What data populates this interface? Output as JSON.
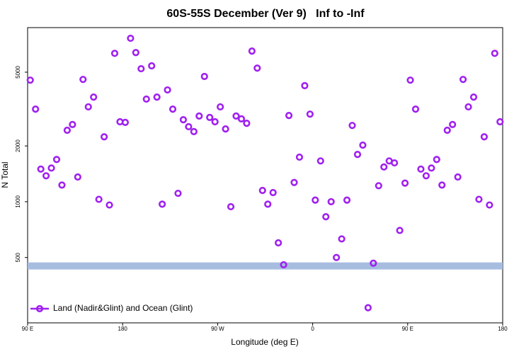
{
  "chart_data": {
    "type": "scatter",
    "title": "60S-55S December (Ver 9)   Inf to -Inf",
    "x_label": "Longitude (deg E)",
    "y_label": "N Total",
    "log_y": true,
    "legend_position": "bottom-left",
    "xlim": [
      90,
      540
    ],
    "xticks": [
      {
        "value": 90,
        "label": "90 E"
      },
      {
        "value": 180,
        "label": "180"
      },
      {
        "value": 270,
        "label": "90 W"
      },
      {
        "value": 360,
        "label": "0"
      },
      {
        "value": 450,
        "label": "90 E"
      },
      {
        "value": 540,
        "label": "180"
      }
    ],
    "ylim": [
      222,
      8700
    ],
    "yticks": [
      500,
      1000,
      2000,
      5000
    ],
    "reference_line": {
      "value": 450,
      "color": "#a7bde0"
    },
    "series": [
      {
        "name": "Land (Nadir&Glint) and Ocean (Glint)",
        "color": "#a020f0",
        "x": [
          92.5,
          97.5,
          102.5,
          107.5,
          112.5,
          117.5,
          122.5,
          127.5,
          132.5,
          137.5,
          142.5,
          147.5,
          152.5,
          157.5,
          162.5,
          167.5,
          172.5,
          177.5,
          182.5,
          187.5,
          192.5,
          197.5,
          202.5,
          207.5,
          212.5,
          217.5,
          222.5,
          227.5,
          232.5,
          237.5,
          242.5,
          247.5,
          252.5,
          257.5,
          262.5,
          267.5,
          272.5,
          277.5,
          282.5,
          287.5,
          292.5,
          297.5,
          302.5,
          307.5,
          312.5,
          317.5,
          322.5,
          327.5,
          332.5,
          337.5,
          342.5,
          347.5,
          352.5,
          357.5,
          362.5,
          367.5,
          372.5,
          377.5,
          382.5,
          387.5,
          392.5,
          397.5,
          402.5,
          407.5,
          412.5,
          417.5,
          422.5,
          427.5,
          432.5,
          437.5,
          442.5,
          447.5,
          452.5,
          457.5,
          462.5,
          467.5,
          472.5,
          477.5,
          482.5,
          487.5,
          492.5,
          497.5,
          502.5,
          507.5,
          512.5,
          517.5,
          522.5,
          527.5,
          532.5,
          537.5
        ],
        "values": [
          4530,
          3160,
          1500,
          1380,
          1520,
          1690,
          1230,
          2430,
          2610,
          1360,
          4570,
          3250,
          3670,
          1030,
          2240,
          960,
          6320,
          2700,
          2680,
          7620,
          6380,
          5220,
          3580,
          5410,
          3670,
          970,
          4010,
          3160,
          1110,
          2770,
          2540,
          2390,
          2900,
          4740,
          2850,
          2700,
          3250,
          2470,
          940,
          2900,
          2800,
          2650,
          6500,
          5260,
          1150,
          970,
          1120,
          600,
          457,
          2920,
          1270,
          1740,
          4230,
          2970,
          1020,
          1660,
          830,
          1000,
          500,
          630,
          1020,
          2580,
          1800,
          2020,
          268,
          466,
          1220,
          1540,
          1660,
          1620,
          700,
          1260,
          4530,
          3160,
          1500,
          1380,
          1520,
          1690,
          1230,
          2430,
          2610,
          1360,
          4570,
          3250,
          3670,
          1030,
          2240,
          960,
          6320,
          2700
        ]
      }
    ]
  }
}
